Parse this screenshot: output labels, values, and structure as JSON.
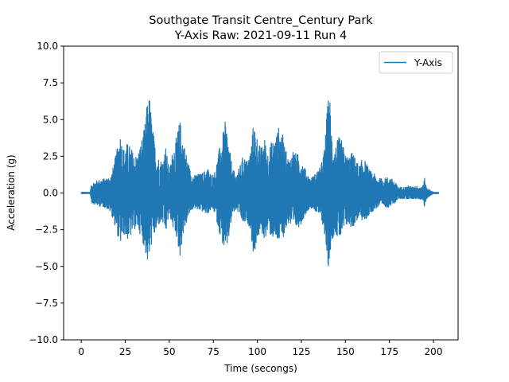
{
  "chart_data": {
    "type": "line",
    "title": "Southgate Transit Centre_Century Park",
    "subtitle": "Y-Axis Raw: 2021-09-11 Run 4",
    "xlabel": "Time (secongs)",
    "ylabel": "Acceleration (g)",
    "xlim": [
      -10,
      214
    ],
    "ylim": [
      -10.0,
      10.0
    ],
    "xticks": [
      0,
      25,
      50,
      75,
      100,
      125,
      150,
      175,
      200
    ],
    "xtick_labels": [
      "0",
      "25",
      "50",
      "75",
      "100",
      "125",
      "150",
      "175",
      "200"
    ],
    "yticks": [
      -10,
      -7.5,
      -5,
      -2.5,
      0,
      2.5,
      5,
      7.5,
      10
    ],
    "ytick_labels": [
      "−10.0",
      "−7.5",
      "−5.0",
      "−2.5",
      "0.0",
      "2.5",
      "5.0",
      "7.5",
      "10.0"
    ],
    "grid": false,
    "legend_position": "top-right",
    "series": [
      {
        "name": "Y-Axis",
        "color": "#1f77b4",
        "envelope": {
          "t": [
            0,
            5,
            6,
            10,
            14,
            17,
            20,
            22,
            24,
            26,
            28,
            30,
            32,
            34,
            36,
            38,
            39,
            40,
            42,
            44,
            46,
            48,
            50,
            52,
            54,
            56,
            57,
            58,
            60,
            62,
            64,
            66,
            68,
            70,
            72,
            74,
            76,
            78,
            80,
            82,
            84,
            86,
            88,
            90,
            92,
            94,
            96,
            98,
            99,
            100,
            102,
            104,
            106,
            108,
            110,
            112,
            114,
            116,
            118,
            120,
            122,
            124,
            126,
            128,
            130,
            132,
            134,
            136,
            138,
            140,
            141,
            142,
            144,
            146,
            148,
            150,
            152,
            154,
            156,
            158,
            160,
            162,
            164,
            166,
            168,
            170,
            172,
            174,
            176,
            178,
            180,
            182,
            184,
            186,
            188,
            190,
            192,
            194,
            195,
            196,
            198,
            200,
            203
          ],
          "upper": [
            0.05,
            0.05,
            0.7,
            0.9,
            1.0,
            1.2,
            2.8,
            4.2,
            3.0,
            3.4,
            3.2,
            2.6,
            2.6,
            3.5,
            4.5,
            6.8,
            6.5,
            5.0,
            3.2,
            2.4,
            2.2,
            3.2,
            1.5,
            3.0,
            3.8,
            5.0,
            4.4,
            3.6,
            2.5,
            1.5,
            1.2,
            1.3,
            1.3,
            1.5,
            1.7,
            1.2,
            1.5,
            2.8,
            3.8,
            5.0,
            3.2,
            1.6,
            1.3,
            1.8,
            2.6,
            2.2,
            2.8,
            5.0,
            4.2,
            3.8,
            3.0,
            3.8,
            2.8,
            3.5,
            3.7,
            4.5,
            4.2,
            3.0,
            2.2,
            3.0,
            2.7,
            2.6,
            2.0,
            1.4,
            1.0,
            1.2,
            1.5,
            1.8,
            3.0,
            6.2,
            7.0,
            4.5,
            3.0,
            3.8,
            3.6,
            2.6,
            2.5,
            2.8,
            2.3,
            1.8,
            2.5,
            2.0,
            1.5,
            1.4,
            1.0,
            1.0,
            1.0,
            1.1,
            1.0,
            0.8,
            0.4,
            0.4,
            0.4,
            0.5,
            0.4,
            0.5,
            0.4,
            0.5,
            1.0,
            0.4,
            0.2,
            0.05,
            0.05
          ],
          "lower": [
            -0.05,
            -0.05,
            -0.7,
            -0.9,
            -1.0,
            -1.4,
            -2.6,
            -3.6,
            -2.8,
            -3.2,
            -3.0,
            -2.5,
            -2.4,
            -3.0,
            -3.8,
            -5.0,
            -4.2,
            -3.5,
            -2.8,
            -2.2,
            -2.0,
            -2.8,
            -1.4,
            -2.4,
            -3.0,
            -4.4,
            -3.6,
            -2.8,
            -2.0,
            -1.3,
            -1.0,
            -1.2,
            -1.2,
            -1.4,
            -1.4,
            -1.1,
            -1.4,
            -2.5,
            -3.4,
            -4.2,
            -3.0,
            -1.4,
            -1.2,
            -1.5,
            -2.2,
            -2.0,
            -2.4,
            -4.6,
            -3.6,
            -3.2,
            -2.6,
            -3.2,
            -2.6,
            -3.0,
            -3.2,
            -3.4,
            -3.2,
            -2.6,
            -2.0,
            -2.6,
            -2.4,
            -2.3,
            -1.8,
            -1.3,
            -1.0,
            -1.1,
            -1.4,
            -1.6,
            -2.6,
            -5.3,
            -4.4,
            -3.5,
            -2.6,
            -3.2,
            -3.0,
            -2.3,
            -2.2,
            -2.4,
            -2.0,
            -1.6,
            -2.0,
            -1.8,
            -1.4,
            -1.2,
            -1.0,
            -0.9,
            -0.9,
            -1.0,
            -0.9,
            -0.7,
            -0.4,
            -0.4,
            -0.4,
            -0.4,
            -0.4,
            -0.4,
            -0.4,
            -0.5,
            -1.0,
            -0.4,
            -0.2,
            -0.05,
            -0.05
          ]
        }
      }
    ]
  }
}
